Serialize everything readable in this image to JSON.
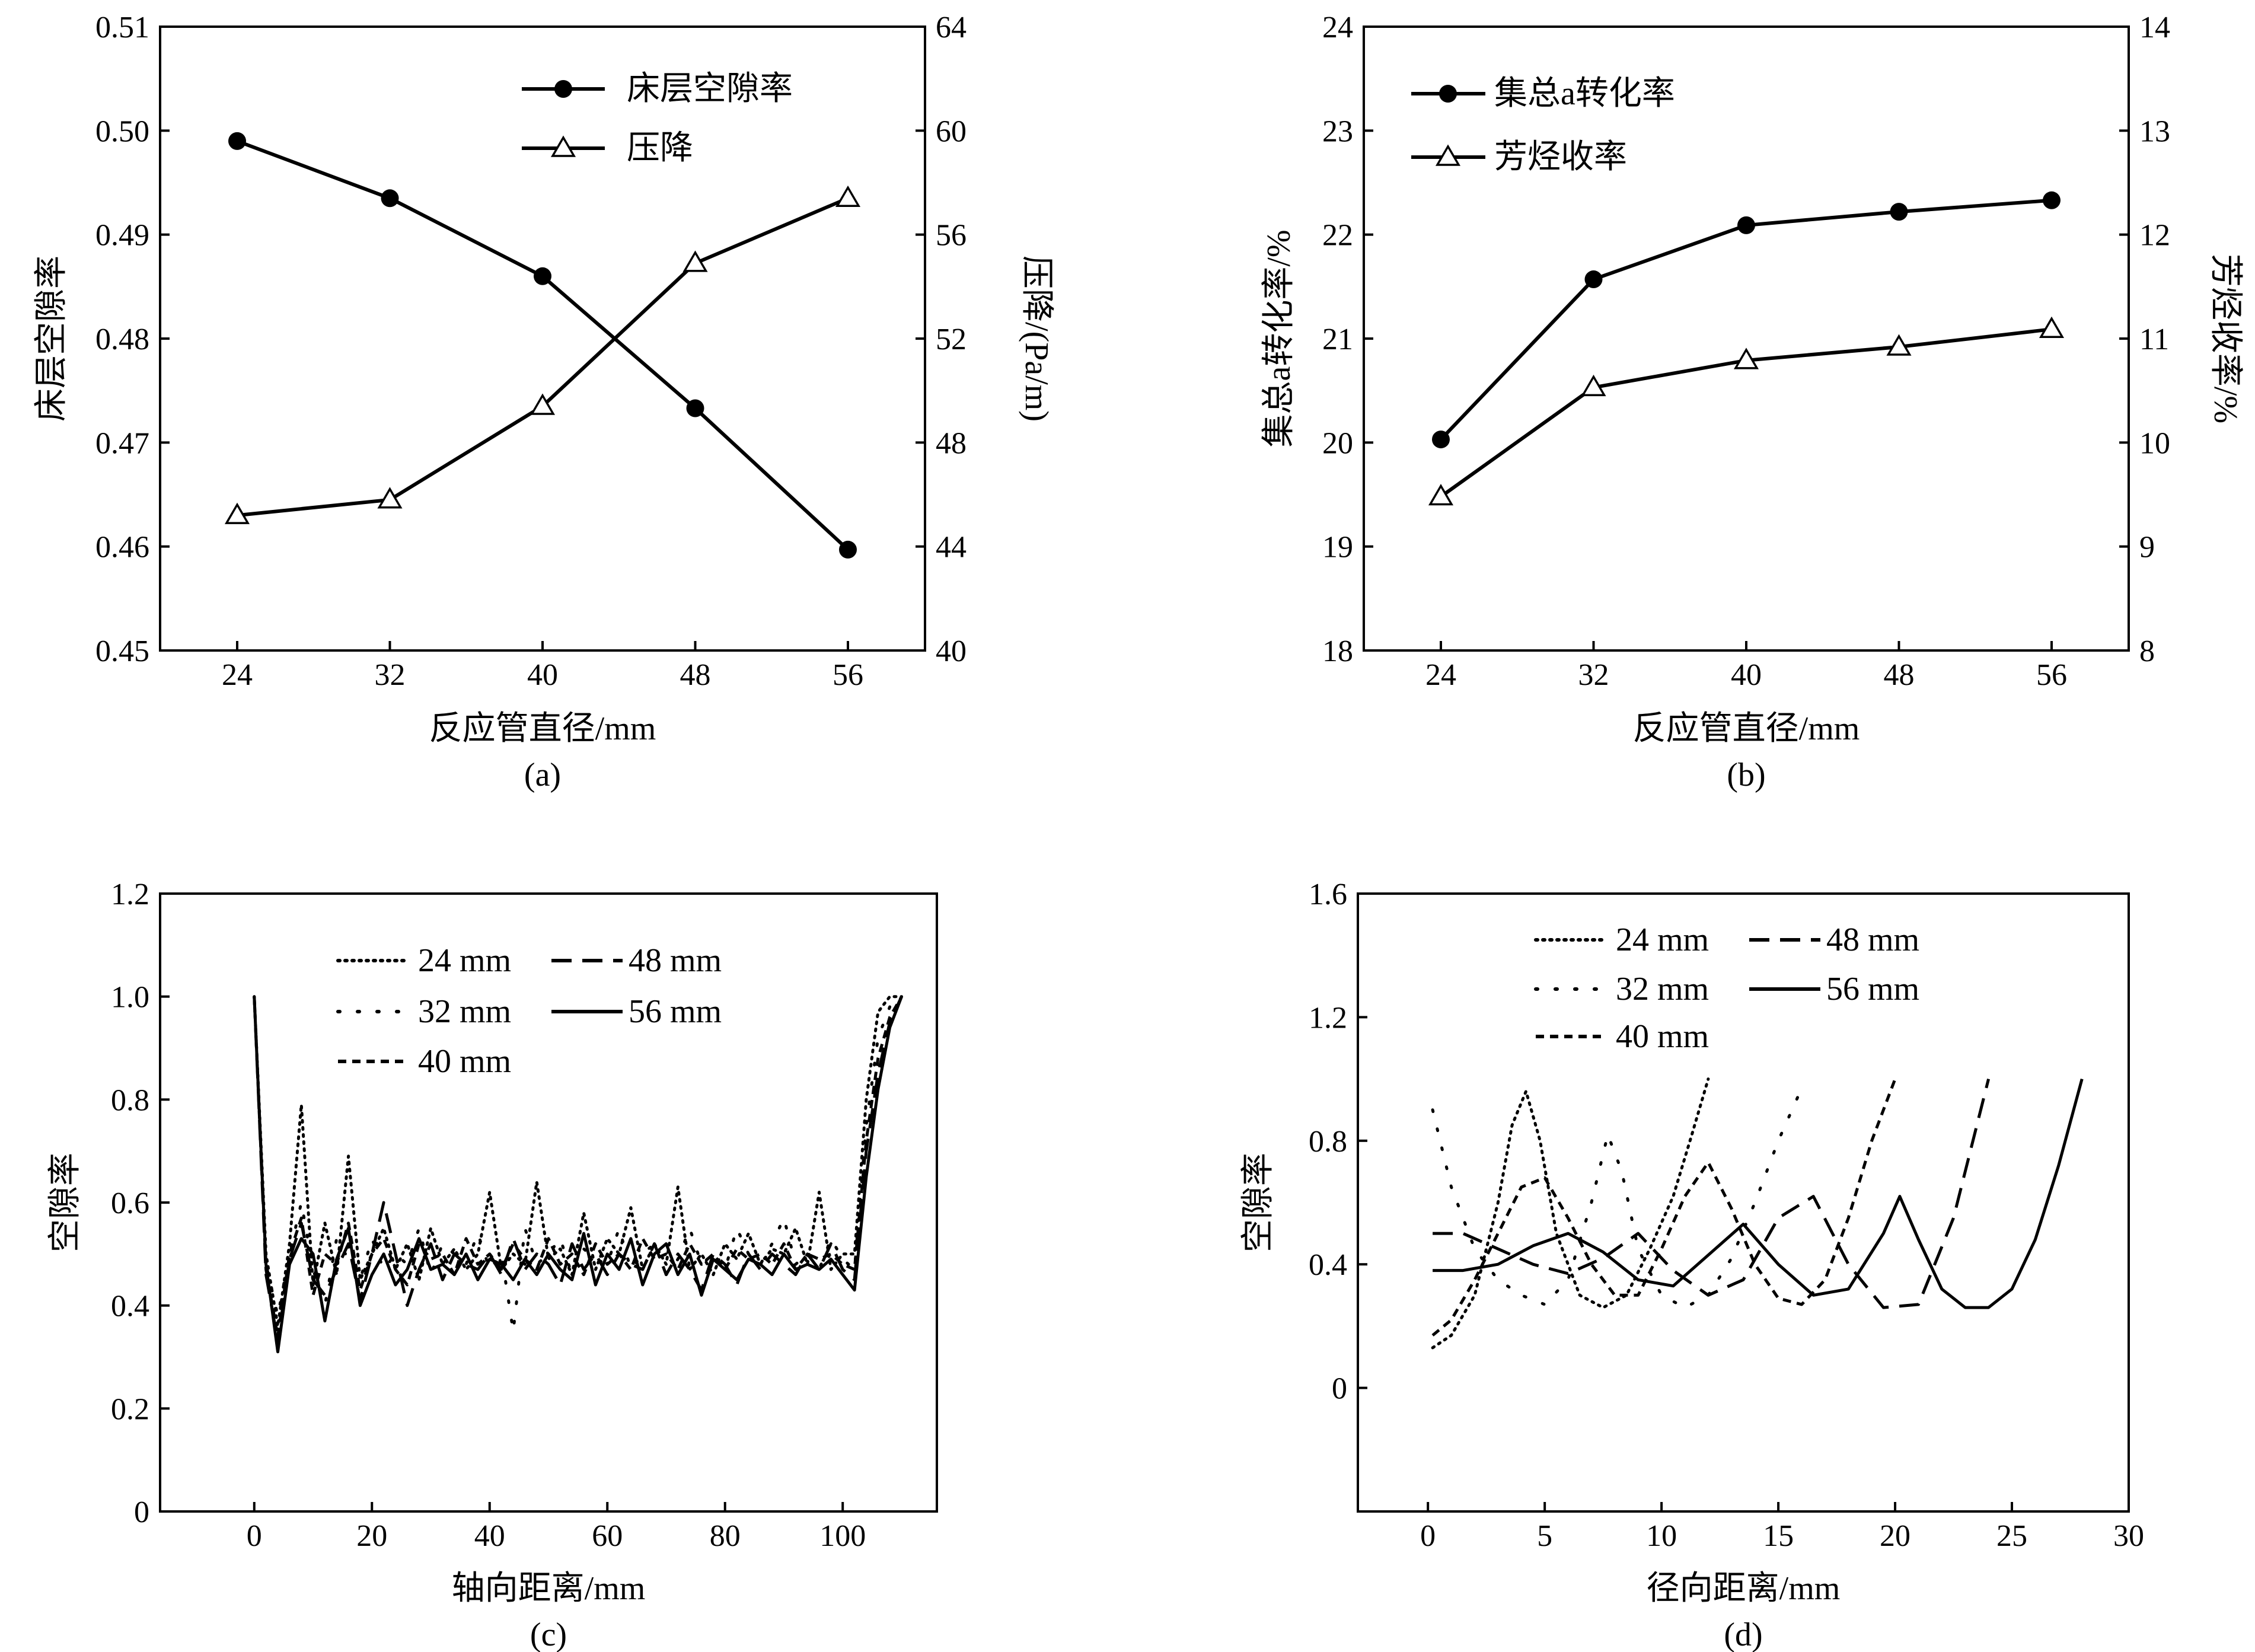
{
  "chart_data": [
    {
      "id": "a",
      "type": "line",
      "panel_label": "(a)",
      "xlabel": "反应管直径/mm",
      "ylabel": "床层空隙率",
      "y2label": "压降/(Pa/m)",
      "categories": [
        24,
        32,
        40,
        48,
        56
      ],
      "x_ticks": [
        "24",
        "32",
        "40",
        "48",
        "56"
      ],
      "ylim": [
        0.45,
        0.51
      ],
      "y_ticks": [
        "0.45",
        "0.46",
        "0.47",
        "0.48",
        "0.49",
        "0.50",
        "0.51"
      ],
      "y2lim": [
        40,
        64
      ],
      "y2_ticks": [
        "40",
        "44",
        "48",
        "52",
        "56",
        "60",
        "64"
      ],
      "series": [
        {
          "name": "床层空隙率",
          "axis": "left",
          "marker": "circle",
          "values": [
            0.499,
            0.4935,
            0.486,
            0.4733,
            0.4597
          ]
        },
        {
          "name": "压降",
          "axis": "right",
          "marker": "triangle",
          "values": [
            45.2,
            45.8,
            49.4,
            54.9,
            57.4
          ]
        }
      ]
    },
    {
      "id": "b",
      "type": "line",
      "panel_label": "(b)",
      "xlabel": "反应管直径/mm",
      "ylabel": "集总a转化率/%",
      "y2label": "芳烃收率/%",
      "categories": [
        24,
        32,
        40,
        48,
        56
      ],
      "x_ticks": [
        "24",
        "32",
        "40",
        "48",
        "56"
      ],
      "ylim": [
        18,
        24
      ],
      "y_ticks": [
        "18",
        "19",
        "20",
        "21",
        "22",
        "23",
        "24"
      ],
      "y2lim": [
        8,
        14
      ],
      "y2_ticks": [
        "8",
        "9",
        "10",
        "11",
        "12",
        "13",
        "14"
      ],
      "series": [
        {
          "name": "集总a转化率",
          "axis": "left",
          "marker": "circle",
          "values": [
            20.03,
            21.57,
            22.09,
            22.22,
            22.33
          ]
        },
        {
          "name": "芳烃收率",
          "axis": "right",
          "marker": "triangle",
          "values": [
            9.48,
            10.53,
            10.79,
            10.92,
            11.09
          ]
        }
      ]
    },
    {
      "id": "c",
      "type": "line",
      "panel_label": "(c)",
      "xlabel": "轴向距离/mm",
      "ylabel": "空隙率",
      "xlim": [
        -16,
        116
      ],
      "x_ticks": [
        0,
        20,
        40,
        60,
        80,
        100
      ],
      "ylim": [
        0,
        1.2
      ],
      "y_ticks": [
        "0",
        "0.2",
        "0.4",
        "0.6",
        "0.8",
        "1.0",
        "1.2"
      ],
      "series": [
        {
          "name": "24 mm",
          "style": "dotted",
          "x": [
            0,
            2,
            4,
            6,
            8,
            10,
            12,
            14,
            16,
            18,
            20,
            22,
            24,
            26,
            28,
            30,
            32,
            34,
            36,
            38,
            40,
            42,
            44,
            46,
            48,
            50,
            52,
            54,
            56,
            58,
            60,
            62,
            64,
            66,
            68,
            70,
            72,
            74,
            76,
            78,
            80,
            82,
            84,
            86,
            88,
            90,
            92,
            94,
            96,
            98,
            100,
            102,
            104,
            106,
            108,
            110
          ],
          "y": [
            1.0,
            0.5,
            0.36,
            0.52,
            0.79,
            0.44,
            0.56,
            0.46,
            0.69,
            0.45,
            0.5,
            0.55,
            0.47,
            0.52,
            0.45,
            0.55,
            0.48,
            0.51,
            0.47,
            0.5,
            0.62,
            0.47,
            0.5,
            0.48,
            0.64,
            0.49,
            0.51,
            0.46,
            0.58,
            0.47,
            0.53,
            0.5,
            0.59,
            0.47,
            0.52,
            0.48,
            0.63,
            0.47,
            0.5,
            0.46,
            0.52,
            0.49,
            0.54,
            0.48,
            0.51,
            0.5,
            0.55,
            0.48,
            0.62,
            0.47,
            0.5,
            0.5,
            0.8,
            0.97,
            1.0,
            1.0
          ]
        },
        {
          "name": "32 mm",
          "style": "dashdot",
          "x": [
            0,
            2,
            4,
            6,
            8,
            10,
            12,
            14,
            16,
            18,
            20,
            22,
            24,
            26,
            28,
            30,
            32,
            34,
            36,
            38,
            40,
            42,
            44,
            46,
            48,
            50,
            52,
            54,
            56,
            58,
            60,
            62,
            64,
            66,
            68,
            70,
            72,
            74,
            76,
            78,
            80,
            82,
            84,
            86,
            88,
            90,
            92,
            94,
            96,
            98,
            100,
            102,
            104,
            106,
            108,
            110
          ],
          "y": [
            1.0,
            0.48,
            0.38,
            0.5,
            0.6,
            0.47,
            0.4,
            0.53,
            0.49,
            0.45,
            0.53,
            0.47,
            0.5,
            0.48,
            0.55,
            0.46,
            0.52,
            0.5,
            0.48,
            0.54,
            0.47,
            0.5,
            0.35,
            0.55,
            0.48,
            0.5,
            0.53,
            0.46,
            0.51,
            0.49,
            0.48,
            0.55,
            0.47,
            0.5,
            0.52,
            0.46,
            0.49,
            0.55,
            0.48,
            0.5,
            0.47,
            0.55,
            0.5,
            0.48,
            0.52,
            0.57,
            0.48,
            0.5,
            0.47,
            0.53,
            0.49,
            0.47,
            0.75,
            0.92,
            0.98,
            1.0
          ]
        },
        {
          "name": "40 mm",
          "style": "dashed-short",
          "x": [
            0,
            2,
            4,
            6,
            8,
            10,
            12,
            14,
            16,
            18,
            20,
            22,
            24,
            26,
            28,
            30,
            32,
            34,
            36,
            38,
            40,
            42,
            44,
            46,
            48,
            50,
            52,
            54,
            56,
            58,
            60,
            62,
            64,
            66,
            68,
            70,
            72,
            74,
            76,
            78,
            80,
            82,
            84,
            86,
            88,
            90,
            92,
            94,
            96,
            98,
            100,
            102,
            104,
            106,
            108,
            110
          ],
          "y": [
            1.0,
            0.47,
            0.34,
            0.5,
            0.57,
            0.42,
            0.5,
            0.48,
            0.56,
            0.43,
            0.5,
            0.53,
            0.47,
            0.44,
            0.52,
            0.49,
            0.5,
            0.46,
            0.53,
            0.48,
            0.5,
            0.47,
            0.52,
            0.49,
            0.47,
            0.53,
            0.48,
            0.5,
            0.46,
            0.52,
            0.48,
            0.5,
            0.47,
            0.53,
            0.49,
            0.5,
            0.47,
            0.52,
            0.48,
            0.5,
            0.47,
            0.51,
            0.49,
            0.5,
            0.48,
            0.52,
            0.47,
            0.5,
            0.49,
            0.5,
            0.48,
            0.47,
            0.72,
            0.88,
            0.96,
            1.0
          ]
        },
        {
          "name": "48 mm",
          "style": "dashed-long",
          "x": [
            0,
            2,
            4,
            6,
            8,
            10,
            12,
            14,
            16,
            18,
            20,
            22,
            24,
            26,
            28,
            30,
            32,
            34,
            36,
            38,
            40,
            42,
            44,
            46,
            48,
            50,
            52,
            54,
            56,
            58,
            60,
            62,
            64,
            66,
            68,
            70,
            72,
            74,
            76,
            78,
            80,
            82,
            84,
            86,
            88,
            90,
            92,
            94,
            96,
            98,
            100,
            102,
            104,
            106,
            108,
            110
          ],
          "y": [
            1.0,
            0.46,
            0.33,
            0.49,
            0.56,
            0.45,
            0.42,
            0.47,
            0.52,
            0.41,
            0.5,
            0.6,
            0.5,
            0.4,
            0.47,
            0.52,
            0.45,
            0.5,
            0.48,
            0.47,
            0.5,
            0.46,
            0.53,
            0.47,
            0.5,
            0.48,
            0.44,
            0.52,
            0.47,
            0.5,
            0.46,
            0.5,
            0.48,
            0.47,
            0.52,
            0.46,
            0.5,
            0.47,
            0.43,
            0.5,
            0.48,
            0.44,
            0.5,
            0.47,
            0.5,
            0.48,
            0.46,
            0.5,
            0.47,
            0.52,
            0.47,
            0.45,
            0.7,
            0.85,
            0.95,
            1.0
          ]
        },
        {
          "name": "56 mm",
          "style": "solid",
          "x": [
            0,
            2,
            4,
            6,
            8,
            10,
            12,
            14,
            16,
            18,
            20,
            22,
            24,
            26,
            28,
            30,
            32,
            34,
            36,
            38,
            40,
            42,
            44,
            46,
            48,
            50,
            52,
            54,
            56,
            58,
            60,
            62,
            64,
            66,
            68,
            70,
            72,
            74,
            76,
            78,
            80,
            82,
            84,
            86,
            88,
            90,
            92,
            94,
            96,
            98,
            100,
            102,
            104,
            106,
            108,
            110
          ],
          "y": [
            1.0,
            0.48,
            0.31,
            0.48,
            0.53,
            0.5,
            0.37,
            0.49,
            0.55,
            0.4,
            0.46,
            0.5,
            0.44,
            0.47,
            0.53,
            0.47,
            0.48,
            0.46,
            0.5,
            0.45,
            0.49,
            0.48,
            0.45,
            0.49,
            0.46,
            0.5,
            0.47,
            0.45,
            0.54,
            0.44,
            0.5,
            0.47,
            0.53,
            0.44,
            0.5,
            0.52,
            0.46,
            0.5,
            0.42,
            0.49,
            0.47,
            0.45,
            0.49,
            0.48,
            0.46,
            0.5,
            0.47,
            0.48,
            0.47,
            0.49,
            0.46,
            0.43,
            0.65,
            0.82,
            0.94,
            1.0
          ]
        }
      ]
    },
    {
      "id": "d",
      "type": "line",
      "panel_label": "(d)",
      "xlabel": "径向距离/mm",
      "ylabel": "空隙率",
      "xlim": [
        -3,
        30
      ],
      "x_ticks": [
        0,
        5,
        10,
        15,
        20,
        25,
        30
      ],
      "ylim": [
        -0.4,
        1.6
      ],
      "y_ticks": [
        "0",
        "0.4",
        "0.8",
        "1.2",
        "1.6"
      ],
      "series": [
        {
          "name": "24 mm",
          "style": "dotted",
          "x": [
            0.2,
            1,
            2,
            3,
            3.6,
            4.2,
            4.8,
            5.5,
            6.5,
            7.5,
            8.5,
            9.5,
            10.5,
            11.3,
            12
          ],
          "y": [
            0.13,
            0.17,
            0.3,
            0.6,
            0.85,
            0.96,
            0.8,
            0.5,
            0.3,
            0.26,
            0.3,
            0.45,
            0.62,
            0.82,
            1.0
          ]
        },
        {
          "name": "32 mm",
          "style": "dashdot",
          "x": [
            0.2,
            1,
            2,
            3,
            4,
            5,
            6,
            7,
            7.7,
            8.3,
            9,
            10,
            11,
            12,
            13,
            14,
            15,
            16
          ],
          "y": [
            0.9,
            0.65,
            0.45,
            0.35,
            0.3,
            0.27,
            0.35,
            0.6,
            0.82,
            0.7,
            0.45,
            0.3,
            0.26,
            0.3,
            0.42,
            0.6,
            0.8,
            0.97
          ]
        },
        {
          "name": "40 mm",
          "style": "dashed-short",
          "x": [
            0.2,
            1,
            2,
            3,
            4,
            5,
            6,
            7,
            8,
            9,
            10,
            11,
            12,
            13,
            14,
            15,
            16,
            17,
            18,
            19,
            20
          ],
          "y": [
            0.17,
            0.22,
            0.35,
            0.5,
            0.65,
            0.68,
            0.55,
            0.4,
            0.3,
            0.3,
            0.45,
            0.62,
            0.73,
            0.58,
            0.4,
            0.29,
            0.27,
            0.35,
            0.55,
            0.8,
            1.0
          ]
        },
        {
          "name": "48 mm",
          "style": "dashed-long",
          "x": [
            0.2,
            1.5,
            3,
            4.5,
            6,
            7.5,
            9,
            10.5,
            12,
            13.5,
            15,
            16.5,
            18,
            19.5,
            21,
            22.5,
            24
          ],
          "y": [
            0.5,
            0.5,
            0.45,
            0.4,
            0.37,
            0.42,
            0.5,
            0.38,
            0.3,
            0.35,
            0.55,
            0.62,
            0.4,
            0.26,
            0.27,
            0.55,
            1.0
          ]
        },
        {
          "name": "56 mm",
          "style": "solid",
          "x": [
            0.2,
            1.5,
            3,
            4.5,
            6,
            7.5,
            9,
            10.5,
            12,
            13.5,
            15,
            16.5,
            18,
            19.5,
            20.2,
            21,
            22,
            23,
            24,
            25,
            26,
            27,
            28
          ],
          "y": [
            0.38,
            0.38,
            0.4,
            0.46,
            0.5,
            0.44,
            0.35,
            0.33,
            0.43,
            0.53,
            0.4,
            0.3,
            0.32,
            0.5,
            0.62,
            0.48,
            0.32,
            0.26,
            0.26,
            0.32,
            0.48,
            0.72,
            1.0
          ]
        }
      ]
    }
  ]
}
